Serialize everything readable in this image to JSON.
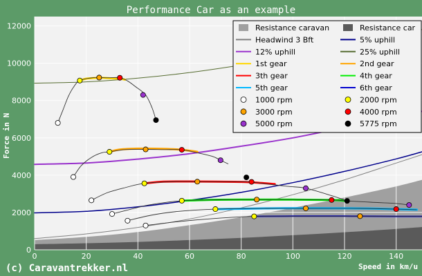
{
  "chart_data": {
    "type": "line",
    "title": "Performance Car as an example",
    "xlabel": "Speed in km/u",
    "ylabel": "Force in N",
    "footer": "(c) Caravantrekker.nl",
    "xlim": [
      0,
      150
    ],
    "ylim": [
      0,
      12500
    ],
    "xticks": [
      0,
      20,
      40,
      60,
      80,
      100,
      120,
      140
    ],
    "yticks": [
      0,
      2000,
      4000,
      6000,
      8000,
      10000,
      12000
    ],
    "grid": true,
    "legend_position": "top-right",
    "colors": {
      "background": "#5c9b68",
      "plot": "#f2f2f2",
      "grid": "#ffffff",
      "resistance_caravan": "#a0a0a0",
      "resistance_car": "#5a5a5a"
    },
    "areas": [
      {
        "name": "Resistance caravan",
        "color": "#a0a0a0",
        "x": [
          0,
          20,
          40,
          60,
          80,
          100,
          120,
          140,
          150
        ],
        "y": [
          520,
          690,
          950,
          1320,
          1750,
          2250,
          2800,
          3400,
          3750
        ]
      },
      {
        "name": "Resistance car",
        "color": "#5a5a5a",
        "x": [
          0,
          20,
          40,
          60,
          80,
          100,
          120,
          140,
          150
        ],
        "y": [
          300,
          350,
          420,
          520,
          640,
          780,
          940,
          1120,
          1220
        ]
      }
    ],
    "series": [
      {
        "name": "Headwind 3 Bft",
        "color": "#808080",
        "width": 1,
        "x": [
          0,
          20,
          40,
          60,
          80,
          100,
          120,
          140,
          150
        ],
        "y": [
          600,
          850,
          1200,
          1650,
          2250,
          2950,
          3750,
          4650,
          5100
        ]
      },
      {
        "name": "5% uphill",
        "color": "#00008b",
        "width": 1.5,
        "x": [
          0,
          20,
          40,
          60,
          80,
          100,
          120,
          140,
          150
        ],
        "y": [
          1980,
          2060,
          2300,
          2650,
          3080,
          3600,
          4200,
          4870,
          5250
        ]
      },
      {
        "name": "12% uphill",
        "color": "#9932cc",
        "width": 2,
        "x": [
          0,
          20,
          40,
          60,
          80,
          100,
          120,
          140,
          150
        ],
        "y": [
          4580,
          4650,
          4860,
          5150,
          5550,
          6000,
          6550,
          7100,
          7420
        ]
      },
      {
        "name": "25% uphill",
        "color": "#556b2f",
        "width": 1,
        "x": [
          0,
          20,
          40,
          60,
          80,
          100,
          120,
          140,
          150
        ],
        "y": [
          8930,
          9000,
          9200,
          9500,
          9900,
          10350,
          10900,
          11450,
          11800
        ]
      },
      {
        "name": "1st gear",
        "color": "#ffd700",
        "width": 3,
        "x": [
          17.5,
          20,
          25,
          30,
          33,
          35
        ],
        "y": [
          9070,
          9170,
          9220,
          9190,
          9170,
          9120
        ]
      },
      {
        "name": "2nd gear",
        "color": "#ffa500",
        "width": 3,
        "x": [
          29,
          33,
          40,
          50,
          57,
          63
        ],
        "y": [
          5250,
          5370,
          5420,
          5410,
          5360,
          5250
        ]
      },
      {
        "name": "3th gear",
        "color": "#ff0000",
        "width": 3,
        "x": [
          42.5,
          50,
          60,
          70,
          80,
          86,
          93
        ],
        "y": [
          3560,
          3650,
          3660,
          3650,
          3640,
          3600,
          3520
        ]
      },
      {
        "name": "4th gear",
        "color": "#00ee00",
        "width": 3,
        "x": [
          57,
          70,
          85,
          100,
          115,
          121
        ],
        "y": [
          2630,
          2680,
          2690,
          2690,
          2670,
          2620
        ]
      },
      {
        "name": "5th gear",
        "color": "#00b7ff",
        "width": 3,
        "x": [
          70,
          90,
          110,
          126,
          140,
          148
        ],
        "y": [
          2180,
          2220,
          2230,
          2220,
          2180,
          2150
        ]
      },
      {
        "name": "6th gear",
        "color": "#0000cd",
        "width": 2,
        "x": [
          85,
          100,
          120,
          140,
          150
        ],
        "y": [
          1790,
          1800,
          1800,
          1790,
          1790
        ]
      }
    ],
    "rpm_curves": [
      {
        "x": [
          9,
          11,
          13,
          15,
          17.5,
          23,
          28,
          33,
          36,
          39,
          43,
          45.5,
          47
        ],
        "y": [
          6800,
          7500,
          8200,
          8700,
          9070,
          9230,
          9220,
          9220,
          9050,
          8750,
          8300,
          7600,
          6950
        ]
      },
      {
        "x": [
          15,
          18,
          22,
          26,
          29,
          35,
          43,
          50,
          57,
          63,
          69,
          72,
          75
        ],
        "y": [
          3900,
          4500,
          4950,
          5200,
          5250,
          5370,
          5380,
          5370,
          5360,
          5200,
          5000,
          4800,
          4600
        ]
      },
      {
        "x": [
          22,
          28,
          35,
          42.5,
          55,
          63,
          70,
          82,
          86,
          90,
          98,
          105,
          115,
          121
        ],
        "y": [
          2650,
          3050,
          3330,
          3560,
          3660,
          3650,
          3650,
          3640,
          3600,
          3530,
          3400,
          3300,
          2900,
          2620
        ]
      },
      {
        "x": [
          30,
          38,
          45,
          57,
          72,
          86,
          105,
          115,
          121,
          130,
          140,
          145
        ],
        "y": [
          1920,
          2200,
          2420,
          2630,
          2680,
          2690,
          2690,
          2670,
          2620,
          2550,
          2480,
          2400
        ]
      },
      {
        "x": [
          36,
          45,
          55,
          70,
          90,
          105,
          126,
          140,
          148
        ],
        "y": [
          1560,
          1850,
          2050,
          2180,
          2220,
          2220,
          2220,
          2180,
          2150
        ]
      },
      {
        "x": [
          43,
          55,
          70,
          85,
          100,
          126,
          150
        ],
        "y": [
          1300,
          1500,
          1680,
          1790,
          1800,
          1800,
          1790
        ]
      }
    ],
    "rpm_markers": [
      {
        "rpm": "1000 rpm",
        "color": "#ffffff",
        "points": [
          [
            9,
            6800
          ],
          [
            15,
            3900
          ],
          [
            22,
            2650
          ],
          [
            30,
            1920
          ],
          [
            36,
            1560
          ],
          [
            43,
            1300
          ]
        ]
      },
      {
        "rpm": "2000 rpm",
        "color": "#ffff00",
        "points": [
          [
            17.5,
            9070
          ],
          [
            29,
            5250
          ],
          [
            42.5,
            3560
          ],
          [
            57,
            2630
          ],
          [
            70,
            2180
          ],
          [
            85,
            1790
          ]
        ]
      },
      {
        "rpm": "3000 rpm",
        "color": "#ffa500",
        "points": [
          [
            25,
            9230
          ],
          [
            43,
            5380
          ],
          [
            63,
            3650
          ],
          [
            86,
            2690
          ],
          [
            105,
            2220
          ],
          [
            126,
            1800
          ]
        ]
      },
      {
        "rpm": "4000 rpm",
        "color": "#ff0000",
        "points": [
          [
            33,
            9220
          ],
          [
            57,
            5360
          ],
          [
            84,
            3640
          ],
          [
            115,
            2670
          ],
          [
            140,
            2180
          ]
        ]
      },
      {
        "rpm": "5000 rpm",
        "color": "#9932cc",
        "points": [
          [
            42,
            8300
          ],
          [
            72,
            4800
          ],
          [
            105,
            3300
          ],
          [
            145,
            2400
          ]
        ]
      },
      {
        "rpm": "5775 rpm",
        "color": "#000000",
        "points": [
          [
            47,
            6950
          ],
          [
            82,
            3880
          ],
          [
            121,
            2620
          ]
        ]
      }
    ],
    "legend": [
      {
        "label": "Resistance caravan",
        "kind": "box",
        "color": "#a0a0a0"
      },
      {
        "label": "Resistance car",
        "kind": "box",
        "color": "#5a5a5a"
      },
      {
        "label": "Headwind 3 Bft",
        "kind": "line",
        "color": "#808080"
      },
      {
        "label": "5% uphill",
        "kind": "line",
        "color": "#00008b"
      },
      {
        "label": "12% uphill",
        "kind": "line",
        "color": "#9932cc"
      },
      {
        "label": "25% uphill",
        "kind": "line",
        "color": "#556b2f"
      },
      {
        "label": "1st gear",
        "kind": "line",
        "color": "#ffd700"
      },
      {
        "label": "2nd gear",
        "kind": "line",
        "color": "#ffa500"
      },
      {
        "label": "3th gear",
        "kind": "line",
        "color": "#ff0000"
      },
      {
        "label": "4th gear",
        "kind": "line",
        "color": "#00ee00"
      },
      {
        "label": "5th gear",
        "kind": "line",
        "color": "#00b7ff"
      },
      {
        "label": "6th gear",
        "kind": "line",
        "color": "#0000cd"
      },
      {
        "label": "1000 rpm",
        "kind": "dot",
        "color": "#ffffff"
      },
      {
        "label": "2000 rpm",
        "kind": "dot",
        "color": "#ffff00"
      },
      {
        "label": "3000 rpm",
        "kind": "dot",
        "color": "#ffa500"
      },
      {
        "label": "4000 rpm",
        "kind": "dot",
        "color": "#ff0000"
      },
      {
        "label": "5000 rpm",
        "kind": "dot",
        "color": "#9932cc"
      },
      {
        "label": "5775 rpm",
        "kind": "dot",
        "color": "#000000"
      }
    ]
  }
}
